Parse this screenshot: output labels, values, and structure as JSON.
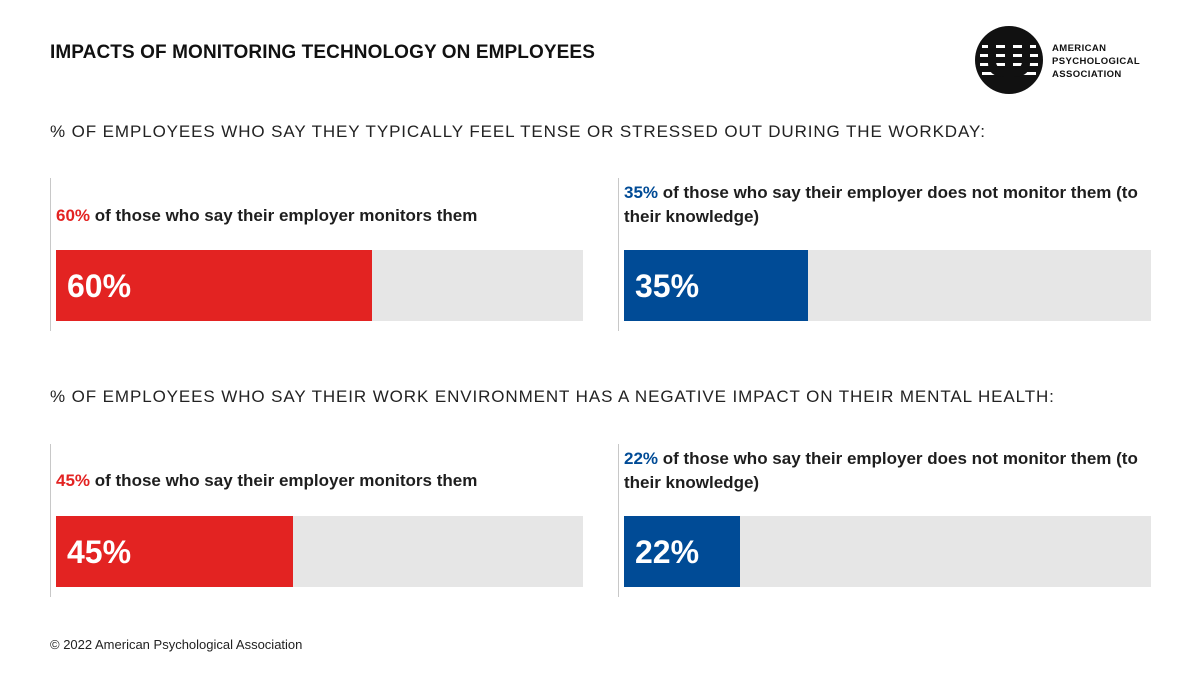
{
  "title": "IMPACTS OF MONITORING TECHNOLOGY ON EMPLOYEES",
  "logo": {
    "line1": "AMERICAN",
    "line2": "PSYCHOLOGICAL",
    "line3": "ASSOCIATION"
  },
  "colors": {
    "monitored": "#e32322",
    "not_monitored": "#004b96",
    "track": "#e6e6e6"
  },
  "sections": [
    {
      "heading": "% OF EMPLOYEES WHO SAY THEY TYPICALLY FEEL TENSE OR STRESSED OUT DURING THE WORKDAY:",
      "left": {
        "pct_text": "60%",
        "label_rest": " of those who say their employer monitors them",
        "bar_label": "60%"
      },
      "right": {
        "pct_text": "35%",
        "label_rest": " of those who say their employer does not monitor them (to their knowledge)",
        "bar_label": "35%"
      }
    },
    {
      "heading": "% OF EMPLOYEES WHO SAY THEIR WORK ENVIRONMENT HAS A NEGATIVE IMPACT ON THEIR MENTAL HEALTH:",
      "left": {
        "pct_text": "45%",
        "label_rest": " of those who say their employer monitors them",
        "bar_label": "45%"
      },
      "right": {
        "pct_text": "22%",
        "label_rest": " of those who say their employer does not monitor them (to their knowledge)",
        "bar_label": "22%"
      }
    }
  ],
  "chart_data": [
    {
      "type": "bar",
      "title": "% OF EMPLOYEES WHO SAY THEY TYPICALLY FEEL TENSE OR STRESSED OUT DURING THE WORKDAY:",
      "categories": [
        "of those who say their employer monitors them",
        "of those who say their employer does not monitor them (to their knowledge)"
      ],
      "values": [
        60,
        35
      ],
      "ylim": [
        0,
        100
      ],
      "orientation": "horizontal"
    },
    {
      "type": "bar",
      "title": "% OF EMPLOYEES WHO SAY THEIR WORK ENVIRONMENT HAS A NEGATIVE IMPACT ON THEIR MENTAL HEALTH:",
      "categories": [
        "of those who say their employer monitors them",
        "of those who say their employer does not monitor them (to their knowledge)"
      ],
      "values": [
        45,
        22
      ],
      "ylim": [
        0,
        100
      ],
      "orientation": "horizontal"
    }
  ],
  "footer": "© 2022 American Psychological Association"
}
